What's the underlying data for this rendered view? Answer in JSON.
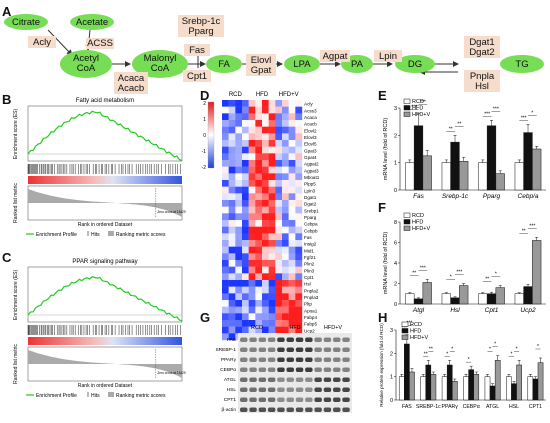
{
  "panel_letters": [
    "A",
    "B",
    "C",
    "D",
    "E",
    "F",
    "G",
    "H"
  ],
  "pathway": {
    "metabolites": [
      "Citrate",
      "Acetate",
      "Acetyl\nCoA",
      "Malonyl\nCoA",
      "FA",
      "LPA",
      "PA",
      "DG",
      "TG"
    ],
    "enzymes": {
      "acly": "Acly",
      "acss": "ACSS",
      "acaca": "Acaca\nAcacb",
      "srebp": "Srebp-1c\nPparg",
      "fas": "Fas",
      "cpt1": "Cpt1",
      "elovl": "Elovl\nGpat",
      "agpat": "Agpat",
      "lpin": "Lpin",
      "dgat": "Dgat1\nDgat2",
      "pnpla": "Pnpla\nHsl"
    },
    "colors": {
      "metabolite": "#77dd55",
      "enzyme_box": "#f6dccb",
      "arrow": "#333333"
    }
  },
  "gsea": [
    {
      "title": "Fatty acid metabolism",
      "es_ylabel": "Enrichment score (ES)",
      "rlm_ylabel": "Ranked list metric",
      "xlabel": "Rank in ordered Dataset",
      "zero_cross": "Zero cross at 13429",
      "legend": [
        "Enrichment Profile",
        "Hits",
        "Ranking metric scores"
      ],
      "peak": 0.58,
      "curve_color": "#22cc22"
    },
    {
      "title": "PPAR signaling pathway",
      "es_ylabel": "Enrichment score (ES)",
      "rlm_ylabel": "Ranked list metric",
      "xlabel": "Rank in ordered Dataset",
      "zero_cross": "Zero cross at 13429",
      "legend": [
        "Enrichment Profile",
        "Hits",
        "Ranking metric scores"
      ],
      "peak": 0.52,
      "curve_color": "#22cc22"
    }
  ],
  "heatmap": {
    "groups": [
      "RCD",
      "HFD",
      "HFD+V"
    ],
    "scale_ticks": [
      "2",
      "1",
      "0",
      "-1",
      "-2"
    ],
    "genes": [
      "Acly",
      "Acss3",
      "Acaca",
      "Acacb",
      "Elovl2",
      "Elovl3",
      "Elovl5",
      "Gpat3",
      "Gpat4",
      "Agpat2",
      "Agpat3",
      "Mboat1",
      "Plpp5",
      "Lpin3",
      "Dgat1",
      "Dgat2",
      "Srebp1",
      "Pparg",
      "Cebpa",
      "Cebpb",
      "Fas",
      "Insig2",
      "Mid1",
      "Fgf21",
      "Plin2",
      "Plin3",
      "Cpt1",
      "Hsl",
      "Pnpla2",
      "Pnpla3",
      "Pltp",
      "Apoa1",
      "Fabp4",
      "Fabp5",
      "Ucp2",
      "Abhd17b"
    ]
  },
  "bar_legend": [
    "RCD",
    "HFD",
    "HFD+V"
  ],
  "bar_colors": [
    "#ffffff",
    "#111111",
    "#999999"
  ],
  "chart_data": [
    {
      "type": "bar",
      "panel": "E",
      "categories": [
        "Fas",
        "Srebp-1c",
        "Pparg",
        "Cebp/a"
      ],
      "series": [
        {
          "name": "RCD",
          "values": [
            1.0,
            1.0,
            1.0,
            1.0
          ]
        },
        {
          "name": "HFD",
          "values": [
            2.35,
            1.75,
            2.35,
            2.1
          ]
        },
        {
          "name": "HFD+V",
          "values": [
            1.25,
            1.05,
            0.6,
            1.5
          ]
        }
      ],
      "errors": [
        [
          0.1,
          0.1,
          0.1,
          0.1
        ],
        [
          0.45,
          0.25,
          0.2,
          0.3
        ],
        [
          0.2,
          0.15,
          0.1,
          0.1
        ]
      ],
      "ylabel": "mRNA level (fold of RCD)",
      "ylim": [
        0,
        3
      ],
      "yticks": [
        "0",
        "1",
        "2",
        "3"
      ],
      "sig": [
        [
          "***",
          "***"
        ],
        [
          "**",
          "**"
        ],
        [
          "***",
          "***"
        ],
        [
          "***",
          "*"
        ]
      ]
    },
    {
      "type": "bar",
      "panel": "F",
      "categories": [
        "Atgl",
        "Hsl",
        "Cpt1",
        "Ucp2"
      ],
      "series": [
        {
          "name": "RCD",
          "values": [
            1.0,
            1.0,
            1.0,
            1.0
          ]
        },
        {
          "name": "HFD",
          "values": [
            0.5,
            0.6,
            1.0,
            1.7
          ]
        },
        {
          "name": "HFD+V",
          "values": [
            2.1,
            1.8,
            1.6,
            6.2
          ]
        }
      ],
      "errors": [
        [
          0.1,
          0.1,
          0.1,
          0.1
        ],
        [
          0.1,
          0.1,
          0.15,
          0.2
        ],
        [
          0.3,
          0.2,
          0.2,
          0.3
        ]
      ],
      "ylabel": "mRNA level (fold of RCD)",
      "ylim": [
        0,
        8
      ],
      "yticks": [
        "0",
        "2",
        "4",
        "6",
        "8"
      ],
      "sig": [
        [
          "**",
          "***"
        ],
        [
          "*",
          "***"
        ],
        [
          "**",
          "*"
        ],
        [
          "**",
          "***"
        ]
      ]
    },
    {
      "type": "bar",
      "panel": "H",
      "categories": [
        "FAS",
        "SREBP-1c",
        "PPARγ",
        "CEBPα",
        "ATGL",
        "HSL",
        "CPT1"
      ],
      "series": [
        {
          "name": "RCD",
          "values": [
            1.0,
            1.0,
            1.0,
            1.0,
            1.0,
            1.0,
            1.0
          ]
        },
        {
          "name": "HFD",
          "values": [
            2.4,
            1.5,
            1.5,
            1.3,
            0.6,
            0.7,
            0.9
          ]
        },
        {
          "name": "HFD+V",
          "values": [
            1.2,
            1.1,
            0.8,
            1.1,
            1.7,
            1.5,
            1.6
          ]
        }
      ],
      "errors": [
        [
          0.1,
          0.1,
          0.1,
          0.1,
          0.1,
          0.1,
          0.1
        ],
        [
          0.4,
          0.2,
          0.2,
          0.15,
          0.1,
          0.1,
          0.1
        ],
        [
          0.15,
          0.1,
          0.1,
          0.1,
          0.2,
          0.2,
          0.2
        ]
      ],
      "ylabel": "Relative protein expression (fold of RCD)",
      "ylim": [
        0,
        3
      ],
      "yticks": [
        "0",
        "1",
        "2",
        "3"
      ],
      "sig": [
        [
          "***",
          "***"
        ],
        [
          "**",
          "**"
        ],
        [
          "*",
          "*"
        ],
        [
          "*",
          ""
        ],
        [
          "*",
          "*"
        ],
        [
          "*",
          "*"
        ],
        [
          "",
          "*"
        ]
      ]
    }
  ],
  "western": {
    "groups": [
      "RCD",
      "HFD",
      "HFD+V"
    ],
    "proteins": [
      "FAS",
      "SREBP-1",
      "PPARγ",
      "CEBPα",
      "ATGL",
      "HSL",
      "CPT1",
      "β-actin"
    ]
  }
}
